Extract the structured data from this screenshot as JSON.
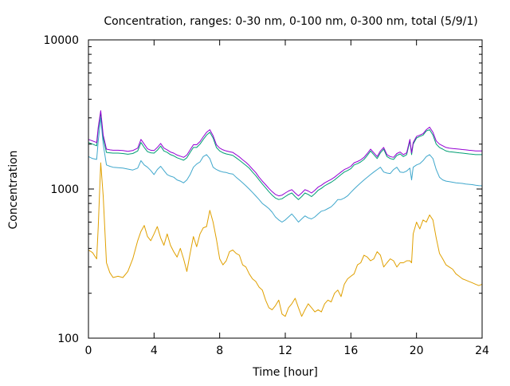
{
  "chart_data": {
    "type": "line",
    "title": "Concentration, ranges: 0-30 nm, 0-100 nm, 0-300 nm, total (5/9/1)",
    "xlabel": "Time [hour]",
    "ylabel": "Concentration",
    "xlim": [
      0,
      24
    ],
    "ylim": [
      100,
      10000
    ],
    "yscale": "log",
    "xticks": [
      0,
      4,
      8,
      12,
      16,
      20,
      24
    ],
    "yticks": [
      100,
      1000,
      10000
    ],
    "xtick_labels": [
      "0",
      "4",
      "8",
      "12",
      "16",
      "20",
      "24"
    ],
    "ytick_labels": [
      "100",
      "1000",
      "10000"
    ],
    "grid": false,
    "colors": [
      "#e0a000",
      "#3fa7cc",
      "#009e73",
      "#9400d3"
    ],
    "series": [
      {
        "x": [
          0,
          0.25,
          0.5,
          0.6,
          0.75,
          0.9,
          1.1,
          1.3,
          1.5,
          1.8,
          2.1,
          2.4,
          2.7,
          3.0,
          3.2,
          3.4,
          3.6,
          3.8,
          4.0,
          4.2,
          4.4,
          4.6,
          4.8,
          5.0,
          5.2,
          5.4,
          5.6,
          5.8,
          6.0,
          6.2,
          6.4,
          6.6,
          6.8,
          7.0,
          7.2,
          7.4,
          7.6,
          7.8,
          8.0,
          8.2,
          8.4,
          8.6,
          8.8,
          9.0,
          9.2,
          9.4,
          9.6,
          9.8,
          10.0,
          10.2,
          10.4,
          10.6,
          10.8,
          11.0,
          11.2,
          11.4,
          11.6,
          11.8,
          12.0,
          12.2,
          12.4,
          12.6,
          12.8,
          13.0,
          13.2,
          13.4,
          13.6,
          13.8,
          14.0,
          14.2,
          14.4,
          14.6,
          14.8,
          15.0,
          15.2,
          15.4,
          15.6,
          15.8,
          16.0,
          16.2,
          16.4,
          16.6,
          16.8,
          17.0,
          17.2,
          17.4,
          17.6,
          17.8,
          18.0,
          18.2,
          18.4,
          18.6,
          18.8,
          19.0,
          19.2,
          19.4,
          19.6,
          19.7,
          19.8,
          20.0,
          20.2,
          20.4,
          20.6,
          20.8,
          21.0,
          21.2,
          21.4,
          21.6,
          21.8,
          22.0,
          22.2,
          22.4,
          22.6,
          22.8,
          23.0,
          23.2,
          23.4,
          23.6,
          23.8,
          24.0
        ],
        "values": [
          390,
          375,
          340,
          560,
          1500,
          900,
          320,
          275,
          255,
          260,
          255,
          280,
          340,
          450,
          520,
          570,
          480,
          450,
          500,
          560,
          470,
          420,
          500,
          420,
          380,
          350,
          400,
          340,
          280,
          370,
          480,
          410,
          500,
          550,
          560,
          720,
          600,
          460,
          340,
          310,
          330,
          380,
          390,
          370,
          360,
          310,
          300,
          270,
          250,
          240,
          220,
          210,
          180,
          160,
          155,
          165,
          180,
          145,
          140,
          160,
          170,
          185,
          160,
          140,
          155,
          170,
          160,
          150,
          155,
          150,
          170,
          180,
          175,
          200,
          210,
          190,
          230,
          250,
          260,
          270,
          310,
          320,
          360,
          350,
          330,
          340,
          380,
          360,
          300,
          320,
          340,
          330,
          300,
          320,
          320,
          330,
          330,
          320,
          500,
          600,
          540,
          620,
          600,
          670,
          620,
          470,
          370,
          340,
          310,
          300,
          290,
          270,
          260,
          250,
          245,
          240,
          235,
          230,
          225,
          230
        ]
      },
      {
        "x": [
          0,
          0.25,
          0.5,
          0.6,
          0.75,
          0.9,
          1.1,
          1.3,
          1.5,
          1.8,
          2.1,
          2.4,
          2.7,
          3.0,
          3.2,
          3.4,
          3.6,
          3.8,
          4.0,
          4.2,
          4.4,
          4.6,
          4.8,
          5.0,
          5.2,
          5.4,
          5.6,
          5.8,
          6.0,
          6.2,
          6.4,
          6.6,
          6.8,
          7.0,
          7.2,
          7.4,
          7.6,
          7.8,
          8.0,
          8.2,
          8.4,
          8.6,
          8.8,
          9.0,
          9.2,
          9.4,
          9.6,
          9.8,
          10.0,
          10.2,
          10.4,
          10.6,
          10.8,
          11.0,
          11.2,
          11.4,
          11.6,
          11.8,
          12.0,
          12.2,
          12.4,
          12.6,
          12.8,
          13.0,
          13.2,
          13.4,
          13.6,
          13.8,
          14.0,
          14.2,
          14.4,
          14.6,
          14.8,
          15.0,
          15.2,
          15.4,
          15.6,
          15.8,
          16.0,
          16.2,
          16.4,
          16.6,
          16.8,
          17.0,
          17.2,
          17.4,
          17.6,
          17.8,
          18.0,
          18.2,
          18.4,
          18.6,
          18.8,
          19.0,
          19.2,
          19.4,
          19.6,
          19.7,
          19.8,
          20.0,
          20.2,
          20.4,
          20.6,
          20.8,
          21.0,
          21.2,
          21.4,
          21.6,
          21.8,
          22.0,
          22.2,
          22.4,
          22.6,
          22.8,
          23.0,
          23.2,
          23.4,
          23.6,
          23.8,
          24.0
        ],
        "values": [
          1650,
          1600,
          1580,
          2100,
          3000,
          2000,
          1450,
          1420,
          1400,
          1390,
          1380,
          1360,
          1340,
          1380,
          1550,
          1450,
          1400,
          1330,
          1250,
          1350,
          1420,
          1330,
          1250,
          1220,
          1200,
          1150,
          1130,
          1100,
          1150,
          1250,
          1400,
          1470,
          1520,
          1650,
          1700,
          1600,
          1400,
          1350,
          1320,
          1300,
          1290,
          1270,
          1260,
          1200,
          1150,
          1100,
          1050,
          1000,
          950,
          900,
          850,
          800,
          770,
          740,
          700,
          650,
          620,
          600,
          620,
          650,
          680,
          640,
          600,
          630,
          660,
          640,
          630,
          650,
          680,
          710,
          720,
          740,
          760,
          800,
          850,
          850,
          870,
          900,
          950,
          1000,
          1050,
          1100,
          1150,
          1200,
          1250,
          1300,
          1350,
          1400,
          1300,
          1280,
          1270,
          1350,
          1400,
          1300,
          1290,
          1320,
          1380,
          1150,
          1400,
          1450,
          1480,
          1550,
          1650,
          1700,
          1600,
          1350,
          1200,
          1150,
          1130,
          1120,
          1110,
          1100,
          1095,
          1090,
          1080,
          1075,
          1070,
          1060,
          1055,
          1050
        ]
      },
      {
        "x": [
          0,
          0.25,
          0.5,
          0.6,
          0.75,
          0.9,
          1.1,
          1.3,
          1.5,
          1.8,
          2.1,
          2.4,
          2.7,
          3.0,
          3.2,
          3.4,
          3.6,
          3.8,
          4.0,
          4.2,
          4.4,
          4.6,
          4.8,
          5.0,
          5.2,
          5.4,
          5.6,
          5.8,
          6.0,
          6.2,
          6.4,
          6.6,
          6.8,
          7.0,
          7.2,
          7.4,
          7.6,
          7.8,
          8.0,
          8.2,
          8.4,
          8.6,
          8.8,
          9.0,
          9.2,
          9.4,
          9.6,
          9.8,
          10.0,
          10.2,
          10.4,
          10.6,
          10.8,
          11.0,
          11.2,
          11.4,
          11.6,
          11.8,
          12.0,
          12.2,
          12.4,
          12.6,
          12.8,
          13.0,
          13.2,
          13.4,
          13.6,
          13.8,
          14.0,
          14.2,
          14.4,
          14.6,
          14.8,
          15.0,
          15.2,
          15.4,
          15.6,
          15.8,
          16.0,
          16.2,
          16.4,
          16.6,
          16.8,
          17.0,
          17.2,
          17.4,
          17.6,
          17.8,
          18.0,
          18.2,
          18.4,
          18.6,
          18.8,
          19.0,
          19.2,
          19.4,
          19.6,
          19.7,
          19.8,
          20.0,
          20.2,
          20.4,
          20.6,
          20.8,
          21.0,
          21.2,
          21.4,
          21.6,
          21.8,
          22.0,
          22.2,
          22.4,
          22.6,
          22.8,
          23.0,
          23.2,
          23.4,
          23.6,
          23.8,
          24.0
        ],
        "values": [
          2050,
          2000,
          1950,
          2500,
          3250,
          2200,
          1760,
          1750,
          1740,
          1740,
          1730,
          1710,
          1730,
          1800,
          2050,
          1900,
          1780,
          1750,
          1740,
          1820,
          1940,
          1800,
          1760,
          1700,
          1670,
          1620,
          1590,
          1560,
          1620,
          1760,
          1900,
          1900,
          2000,
          2150,
          2300,
          2400,
          2200,
          1900,
          1800,
          1750,
          1720,
          1700,
          1680,
          1620,
          1560,
          1500,
          1440,
          1380,
          1300,
          1230,
          1150,
          1080,
          1020,
          960,
          910,
          870,
          850,
          860,
          890,
          920,
          940,
          890,
          850,
          890,
          940,
          920,
          890,
          930,
          980,
          1010,
          1050,
          1080,
          1110,
          1150,
          1200,
          1250,
          1300,
          1330,
          1370,
          1450,
          1480,
          1520,
          1580,
          1680,
          1800,
          1700,
          1600,
          1750,
          1850,
          1650,
          1600,
          1580,
          1680,
          1720,
          1650,
          1700,
          2100,
          1700,
          2000,
          2200,
          2250,
          2300,
          2450,
          2500,
          2300,
          2000,
          1900,
          1850,
          1800,
          1780,
          1770,
          1760,
          1750,
          1740,
          1730,
          1720,
          1710,
          1700,
          1700,
          1700
        ]
      },
      {
        "x": [
          0,
          0.25,
          0.5,
          0.6,
          0.75,
          0.9,
          1.1,
          1.3,
          1.5,
          1.8,
          2.1,
          2.4,
          2.7,
          3.0,
          3.2,
          3.4,
          3.6,
          3.8,
          4.0,
          4.2,
          4.4,
          4.6,
          4.8,
          5.0,
          5.2,
          5.4,
          5.6,
          5.8,
          6.0,
          6.2,
          6.4,
          6.6,
          6.8,
          7.0,
          7.2,
          7.4,
          7.6,
          7.8,
          8.0,
          8.2,
          8.4,
          8.6,
          8.8,
          9.0,
          9.2,
          9.4,
          9.6,
          9.8,
          10.0,
          10.2,
          10.4,
          10.6,
          10.8,
          11.0,
          11.2,
          11.4,
          11.6,
          11.8,
          12.0,
          12.2,
          12.4,
          12.6,
          12.8,
          13.0,
          13.2,
          13.4,
          13.6,
          13.8,
          14.0,
          14.2,
          14.4,
          14.6,
          14.8,
          15.0,
          15.2,
          15.4,
          15.6,
          15.8,
          16.0,
          16.2,
          16.4,
          16.6,
          16.8,
          17.0,
          17.2,
          17.4,
          17.6,
          17.8,
          18.0,
          18.2,
          18.4,
          18.6,
          18.8,
          19.0,
          19.2,
          19.4,
          19.6,
          19.7,
          19.8,
          20.0,
          20.2,
          20.4,
          20.6,
          20.8,
          21.0,
          21.2,
          21.4,
          21.6,
          21.8,
          22.0,
          22.2,
          22.4,
          22.6,
          22.8,
          23.0,
          23.2,
          23.4,
          23.6,
          23.8,
          24.0
        ],
        "values": [
          2150,
          2100,
          2050,
          2600,
          3350,
          2300,
          1850,
          1830,
          1820,
          1820,
          1810,
          1790,
          1810,
          1880,
          2150,
          2000,
          1860,
          1820,
          1810,
          1900,
          2020,
          1880,
          1830,
          1770,
          1740,
          1690,
          1660,
          1630,
          1690,
          1830,
          1980,
          1980,
          2080,
          2240,
          2400,
          2500,
          2280,
          1980,
          1880,
          1830,
          1800,
          1780,
          1760,
          1700,
          1640,
          1570,
          1510,
          1440,
          1360,
          1290,
          1200,
          1130,
          1070,
          1010,
          960,
          920,
          900,
          910,
          940,
          970,
          990,
          940,
          900,
          940,
          990,
          970,
          940,
          980,
          1030,
          1060,
          1100,
          1130,
          1160,
          1200,
          1250,
          1300,
          1350,
          1380,
          1420,
          1500,
          1530,
          1570,
          1630,
          1730,
          1850,
          1750,
          1650,
          1800,
          1900,
          1700,
          1650,
          1630,
          1730,
          1770,
          1700,
          1750,
          2150,
          1750,
          2050,
          2250,
          2300,
          2350,
          2500,
          2600,
          2400,
          2100,
          2000,
          1950,
          1900,
          1880,
          1870,
          1860,
          1850,
          1840,
          1830,
          1820,
          1810,
          1800,
          1800,
          1800
        ]
      }
    ]
  }
}
